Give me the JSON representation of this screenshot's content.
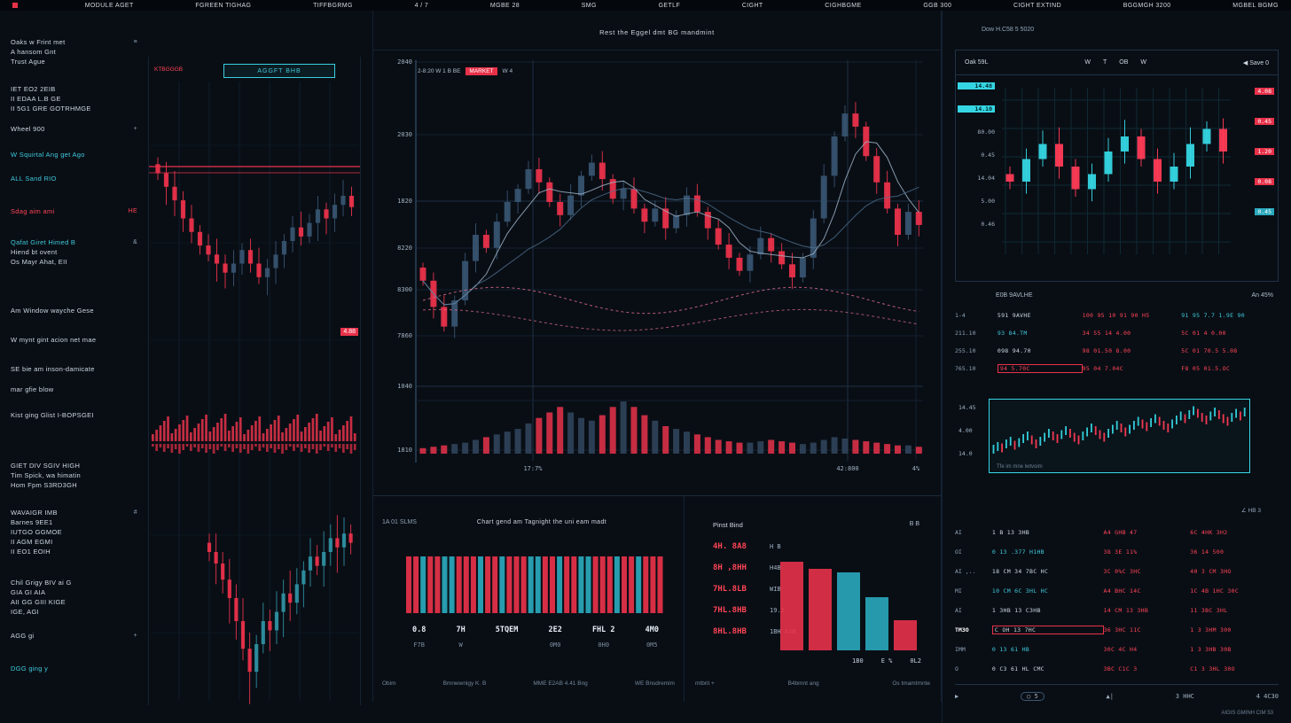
{
  "colors": {
    "bg": "#090e15",
    "red": "#e8324a",
    "red2": "#ff4455",
    "cyan": "#35d6e3",
    "teal": "#2aa9bd",
    "steel": "#37536f",
    "grid": "#122030",
    "grid_bright": "#1d3042",
    "pink": "#e8718f",
    "ma_light": "#9db1c4",
    "ma_dark": "#4f7090"
  },
  "menubar": {
    "items": [
      "MODULE AGET",
      "FGREEN TIGHAG",
      "TIFFBGRMG",
      "4 / 7",
      "MGBE 28",
      "SMG",
      "GETLF",
      "CIGHT",
      "CIGHBGME",
      "GGB 300",
      "CIGHT EXTIND",
      "BGGMGH 3200",
      "MGBEL BGMG"
    ]
  },
  "sidebar": {
    "items": [
      {
        "t": "Oaks w Frint met",
        "c": "w",
        "gap": 14,
        "r": "≡"
      },
      {
        "t": "A hansom Gnt",
        "c": "w"
      },
      {
        "t": "Trust Ague",
        "c": "w"
      },
      {
        "t": "IET EO2 2EIB",
        "c": "w",
        "gap": 20
      },
      {
        "t": "II EDAA L.B GE",
        "c": "w"
      },
      {
        "t": "II 5G1 GRE GOTRHMGE",
        "c": "w"
      },
      {
        "t": "Wheel 900",
        "c": "w",
        "gap": 12,
        "r": "+"
      },
      {
        "t": "W Squirtal Ang get Ago",
        "c": "cy",
        "gap": 18
      },
      {
        "t": "ALL Sand RIO",
        "c": "cy",
        "gap": 16
      },
      {
        "t": "Sdag aim ami",
        "c": "r",
        "gap": 26,
        "r": "HE",
        "rc": "r"
      },
      {
        "t": "Qafat Giret Himed B",
        "c": "cy",
        "gap": 24,
        "r": "&"
      },
      {
        "t": "Hiend bt ovent",
        "c": "w"
      },
      {
        "t": "Os Mayr Ahat, EII",
        "c": "w"
      },
      {
        "t": "Am Window wayche Gese",
        "c": "w",
        "gap": 44
      },
      {
        "t": "W mynt gint acion net mae",
        "c": "w",
        "gap": 22
      },
      {
        "t": "SE bie am inson-damicate",
        "c": "w",
        "gap": 22
      },
      {
        "t": "mar gfie blow",
        "c": "w",
        "gap": 12
      },
      {
        "t": "Kist ging Glist I-BOPSGEI",
        "c": "w",
        "gap": 18
      },
      {
        "t": "GIET DIV SGIV HIGH",
        "c": "w",
        "gap": 46
      },
      {
        "t": "Tim Spick, wa himatin",
        "c": "w"
      },
      {
        "t": "Hom Fpm S3RD3GH",
        "c": "w"
      },
      {
        "t": "WAVAIGR IMB",
        "c": "w",
        "gap": 20,
        "r": "#"
      },
      {
        "t": "Barnes 9EE1",
        "c": "w"
      },
      {
        "t": "IUTGO GGMOE",
        "c": "w"
      },
      {
        "t": "II AGM EGMI",
        "c": "w"
      },
      {
        "t": "II EO1 EOIH",
        "c": "w"
      },
      {
        "t": "Chil Grigy BIV ai G",
        "c": "w",
        "gap": 24
      },
      {
        "t": "GIA GI AIA",
        "c": "w"
      },
      {
        "t": "AII GG GIII KIGE",
        "c": "w"
      },
      {
        "t": "IGE, AGI",
        "c": "w"
      },
      {
        "t": "AGG gi",
        "c": "w",
        "gap": 16,
        "r": "+"
      },
      {
        "t": "DGG ging y",
        "c": "cy",
        "gap": 26
      }
    ]
  },
  "panel_a": {
    "chip": "AGGFT BHB",
    "tag": "KTBGGGB",
    "badge": "4.88",
    "chart_data": {
      "type": "candlestick",
      "series1_closes": [
        70,
        64,
        58,
        50,
        44,
        38,
        34,
        30,
        26,
        30,
        36,
        30,
        24,
        28,
        34,
        40,
        46,
        42,
        48,
        54,
        50,
        56,
        60,
        55
      ],
      "series1_open0": 74,
      "series2_closes": [
        60,
        55,
        48,
        40,
        30,
        18,
        8,
        20,
        30,
        26,
        34,
        42,
        38,
        46,
        52,
        58,
        54,
        60,
        66,
        62,
        68,
        64
      ],
      "series2_open0": 64
    }
  },
  "main": {
    "title": "Rest the Eggel dmt BG mandmint",
    "legend": {
      "text": "2-8:20  W 1 B BE",
      "badge": "MARKET",
      "suffix": "W 4"
    },
    "chart_data": {
      "type": "candlestick",
      "y_labels": [
        "2040",
        "2030",
        "1820",
        "8220",
        "8300",
        "7860",
        "1040",
        "1810"
      ],
      "x_labels": [
        "17:7%",
        "42:800",
        "4%"
      ],
      "candles": [
        [
          40,
          36
        ],
        [
          36,
          28
        ],
        [
          28,
          22
        ],
        [
          22,
          30
        ],
        [
          30,
          42
        ],
        [
          42,
          50
        ],
        [
          50,
          46
        ],
        [
          46,
          54
        ],
        [
          54,
          60
        ],
        [
          60,
          64
        ],
        [
          64,
          70
        ],
        [
          70,
          66
        ],
        [
          66,
          60
        ],
        [
          60,
          56
        ],
        [
          56,
          62
        ],
        [
          62,
          68
        ],
        [
          68,
          72
        ],
        [
          72,
          67
        ],
        [
          67,
          61
        ],
        [
          61,
          64
        ],
        [
          64,
          58
        ],
        [
          58,
          54
        ],
        [
          54,
          58
        ],
        [
          58,
          52
        ],
        [
          52,
          56
        ],
        [
          56,
          62
        ],
        [
          62,
          57
        ],
        [
          57,
          52
        ],
        [
          52,
          47
        ],
        [
          47,
          43
        ],
        [
          43,
          39
        ],
        [
          39,
          44
        ],
        [
          44,
          49
        ],
        [
          49,
          45
        ],
        [
          45,
          41
        ],
        [
          41,
          37
        ],
        [
          37,
          43
        ],
        [
          43,
          55
        ],
        [
          55,
          68
        ],
        [
          68,
          80
        ],
        [
          80,
          87
        ],
        [
          87,
          83
        ],
        [
          83,
          74
        ],
        [
          74,
          66
        ],
        [
          66,
          58
        ],
        [
          58,
          50
        ],
        [
          50,
          57
        ],
        [
          57,
          53
        ]
      ],
      "volume": [
        4,
        5,
        6,
        7,
        8,
        10,
        12,
        14,
        16,
        18,
        22,
        26,
        30,
        34,
        30,
        26,
        24,
        28,
        34,
        38,
        34,
        28,
        24,
        20,
        18,
        16,
        14,
        12,
        10,
        9,
        8,
        8,
        9,
        10,
        9,
        8,
        7,
        8,
        10,
        12,
        11,
        10,
        9,
        8,
        7,
        6,
        6,
        5
      ]
    }
  },
  "stats": {
    "header_left": "1A 01 SLMS",
    "title": "Chart gend am Tagnight the uni eam madt",
    "stripe_colors": [
      "r",
      "r",
      "t",
      "r",
      "r",
      "t",
      "t",
      "r",
      "r",
      "r",
      "t",
      "r",
      "r",
      "t",
      "r",
      "r",
      "r",
      "t",
      "t",
      "r",
      "r",
      "t",
      "r",
      "r",
      "t",
      "t",
      "r",
      "r",
      "r",
      "t",
      "r",
      "r",
      "t",
      "r",
      "r",
      "r"
    ],
    "columns": [
      [
        "0.8",
        "F7B"
      ],
      [
        "7H",
        "W"
      ],
      [
        "5TQEM",
        ""
      ],
      [
        "2E2",
        "0M0"
      ],
      [
        "FHL 2",
        "0H0"
      ],
      [
        "4M0",
        "0M5"
      ]
    ],
    "footer": [
      "Obim",
      "Bmnwwnigy K. B",
      "MME E2AB 4.41 Bng",
      "WE Bnsdremim"
    ]
  },
  "mid": {
    "title": "Pinst Bind",
    "right_label": "B B",
    "rows": [
      {
        "v": "4H. 8A8",
        "n": "H B"
      },
      {
        "v": "8H ,8HH",
        "n": "H4B"
      },
      {
        "v": "7HL.8LB",
        "n": "WIB"
      },
      {
        "v": "7HL.8HB",
        "n": "19.2"
      },
      {
        "v": "8HL.8HB",
        "n": "1BH A1B"
      }
    ],
    "under_bars": [
      "1B0",
      "E %",
      "0L2"
    ],
    "footer": [
      "mtbrit +",
      "B4bmnt ang",
      "Os tmamtmnte"
    ],
    "chart_data": {
      "type": "bar",
      "values": [
        100,
        92,
        88,
        60,
        34
      ],
      "bar_colors": [
        "r",
        "r",
        "t",
        "t",
        "r"
      ]
    }
  },
  "right": {
    "top_label": "Dow H.C58 5 5020",
    "toolbar": {
      "left": "Oak 59L",
      "buttons": [
        "W",
        "T",
        "OB",
        "W"
      ],
      "right": "◀ Save 0"
    },
    "mini": {
      "labels": [
        {
          "t": "14.48",
          "chip": true
        },
        {
          "t": "14.10",
          "chip": true
        },
        {
          "t": "80.00"
        },
        {
          "t": "0.45"
        },
        {
          "t": "14.04"
        },
        {
          "t": "5.00"
        },
        {
          "t": "0.46"
        }
      ],
      "badges": [
        {
          "t": "4.08",
          "c": "r"
        },
        {
          "t": "0.45",
          "c": "r"
        },
        {
          "t": "1.20",
          "c": "r"
        },
        {
          "t": "0.08",
          "c": "r"
        },
        {
          "t": "0.45",
          "c": "t"
        }
      ],
      "chart_data": {
        "type": "candlestick",
        "closes": [
          40,
          55,
          65,
          50,
          35,
          45,
          60,
          70,
          55,
          40,
          50,
          65,
          75,
          60
        ],
        "open0": 45
      }
    },
    "table_header": {
      "left": "E0B 9AVLHE",
      "right": "An 45%"
    },
    "upper_table": {
      "rows": [
        {
          "label": "1-4",
          "cells": [
            {
              "t": "591 9AVHE",
              "c": "w"
            },
            {
              "t": "100 95 10 91 90 H5",
              "c": "r"
            },
            {
              "t": "91 95 7.7 1.9E 90",
              "c": "cy"
            }
          ]
        },
        {
          "label": "211.10",
          "cells": [
            {
              "t": "93 84.TM",
              "c": "cy"
            },
            {
              "t": "34 55 14 4.00",
              "c": "r"
            },
            {
              "t": "5C 01 4 0.00",
              "c": "r"
            }
          ]
        },
        {
          "label": "255.10",
          "cells": [
            {
              "t": "098 94.70",
              "c": "w"
            },
            {
              "t": "98 01.50 8.00",
              "c": "r"
            },
            {
              "t": "5C 01 70.5 5.08",
              "c": "r"
            }
          ]
        },
        {
          "label": "765.10",
          "cells": [
            {
              "t": "94 5.70C",
              "c": "r",
              "box": true
            },
            {
              "t": "95 04 7.04C",
              "c": "r"
            },
            {
              "t": "F8 05 01.5.OC",
              "c": "r"
            }
          ]
        }
      ]
    },
    "spark": {
      "labels": [
        "14.45",
        "4.00",
        "14.0"
      ],
      "caption": "Tfe im mne lwtvoim",
      "chart_data": {
        "type": "line",
        "values": [
          12,
          14,
          13,
          16,
          18,
          15,
          17,
          20,
          22,
          19,
          16,
          18,
          21,
          24,
          22,
          20,
          23,
          26,
          24,
          21,
          19,
          22,
          25,
          28,
          26,
          23,
          21,
          24,
          27,
          30,
          28,
          25,
          27,
          30,
          33,
          31,
          29,
          32,
          35,
          33,
          30,
          28,
          31,
          34,
          37,
          35,
          38,
          41,
          39,
          36,
          34,
          37,
          40,
          38,
          35,
          33,
          36,
          39,
          37,
          40
        ]
      }
    },
    "corner_label": "∠ HB 3",
    "bottom_table": {
      "rows": [
        {
          "label": "AI",
          "cells": [
            {
              "t": "1 B 13 3HB",
              "c": "w"
            },
            {
              "t": "A4 GHB 47",
              "c": "r"
            },
            {
              "t": "6C 4HK 3H2",
              "c": "r"
            }
          ]
        },
        {
          "label": "OI",
          "cells": [
            {
              "t": "0 13 .377 H1HB",
              "c": "cy"
            },
            {
              "t": "38 3E 11%",
              "c": "r"
            },
            {
              "t": "36 14 500",
              "c": "r"
            }
          ]
        },
        {
          "label": "AI ,..",
          "cells": [
            {
              "t": "18 CM 34 7BC HC",
              "c": "w"
            },
            {
              "t": "3C 0%C 3HC",
              "c": "r"
            },
            {
              "t": "40 3 CM 3HO",
              "c": "r"
            }
          ]
        },
        {
          "label": "MI",
          "cells": [
            {
              "t": "10 CM 6C 3HL HC",
              "c": "cy"
            },
            {
              "t": "A4 BHC 14C",
              "c": "r"
            },
            {
              "t": "1C 4B 1HC 30C",
              "c": "r"
            }
          ]
        },
        {
          "label": "AI",
          "cells": [
            {
              "t": "1 3HB 13 C3HB",
              "c": "w"
            },
            {
              "t": "14 CM 13 3HB",
              "c": "r"
            },
            {
              "t": "11 3BC 3HL",
              "c": "r"
            }
          ]
        },
        {
          "label": "TM3O",
          "hl": true,
          "cells": [
            {
              "t": "C OH 13 7HC",
              "c": "w",
              "box": true
            },
            {
              "t": "36 3HC 11C",
              "c": "r"
            },
            {
              "t": "1 3 3HM 300",
              "c": "r"
            }
          ]
        },
        {
          "label": "IMM",
          "cells": [
            {
              "t": "0 13 61 HB",
              "c": "cy"
            },
            {
              "t": "30C 4C H4",
              "c": "r"
            },
            {
              "t": "1 3 3HB 30B",
              "c": "r"
            }
          ]
        },
        {
          "label": "O",
          "cells": [
            {
              "t": "0 C3 61 HL CMC",
              "c": "w"
            },
            {
              "t": "3BC C1C 3",
              "c": "r"
            },
            {
              "t": "C1 3 3HL 30O",
              "c": "r"
            }
          ]
        }
      ]
    },
    "footer": {
      "items": [
        "▶",
        "◯ 5",
        "▲|",
        "3 HHC",
        "4 4C30"
      ],
      "sub": "AIGIS GMINH CIM 53"
    }
  }
}
